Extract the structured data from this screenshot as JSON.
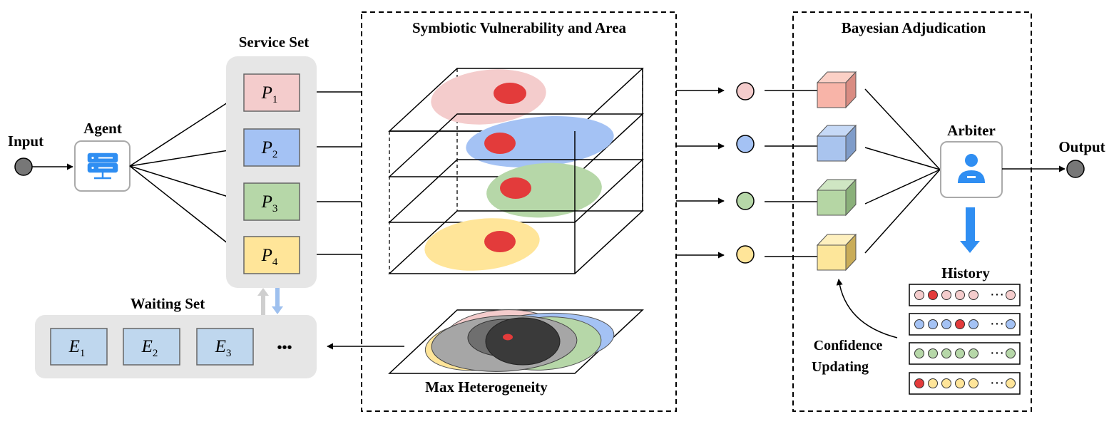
{
  "labels": {
    "input": "Input",
    "agent": "Agent",
    "service_set": "Service Set",
    "waiting_set": "Waiting Set",
    "symbiotic_title": "Symbiotic Vulnerability and Area",
    "max_heterogeneity": "Max Heterogeneity",
    "bayesian_title": "Bayesian Adjudication",
    "arbiter": "Arbiter",
    "output": "Output",
    "history": "History",
    "confidence_line1": "Confidence",
    "confidence_line2": "Updating"
  },
  "service_set": [
    {
      "symbol": "P",
      "subscript": "1",
      "color": "#f4cccc"
    },
    {
      "symbol": "P",
      "subscript": "2",
      "color": "#a4c2f4"
    },
    {
      "symbol": "P",
      "subscript": "3",
      "color": "#b6d7a8"
    },
    {
      "symbol": "P",
      "subscript": "4",
      "color": "#ffe599"
    }
  ],
  "waiting_set": [
    {
      "symbol": "E",
      "subscript": "1"
    },
    {
      "symbol": "E",
      "subscript": "2"
    },
    {
      "symbol": "E",
      "subscript": "3"
    }
  ],
  "waiting_more": "•••",
  "history_rows": [
    {
      "dots": [
        "#f4cccc",
        "#e33b3b",
        "#f4cccc",
        "#f4cccc",
        "#f4cccc"
      ],
      "last": "#f4cccc",
      "ellipsis": "···"
    },
    {
      "dots": [
        "#a4c2f4",
        "#a4c2f4",
        "#a4c2f4",
        "#e33b3b",
        "#a4c2f4"
      ],
      "last": "#a4c2f4",
      "ellipsis": "···"
    },
    {
      "dots": [
        "#b6d7a8",
        "#b6d7a8",
        "#b6d7a8",
        "#b6d7a8",
        "#b6d7a8"
      ],
      "last": "#b6d7a8",
      "ellipsis": "···"
    },
    {
      "dots": [
        "#e33b3b",
        "#ffe599",
        "#ffe599",
        "#ffe599",
        "#ffe599"
      ],
      "last": "#ffe599",
      "ellipsis": "···"
    }
  ],
  "colors": {
    "pink": "#f4cccc",
    "blue": "#a4c2f4",
    "green": "#b6d7a8",
    "yellow": "#ffe599",
    "red": "#e33b3b",
    "panel_gray": "#e6e6e6",
    "waiting_box": "#bfd7ee",
    "icon_blue": "#2f8ef2",
    "cube_pink": "#f8b4a8",
    "cube_blue": "#a9c4ee",
    "cube_green": "#b5d6a4",
    "cube_yellow": "#fde69a"
  },
  "icons": {
    "agent": "server-icon",
    "arbiter": "user-icon"
  }
}
